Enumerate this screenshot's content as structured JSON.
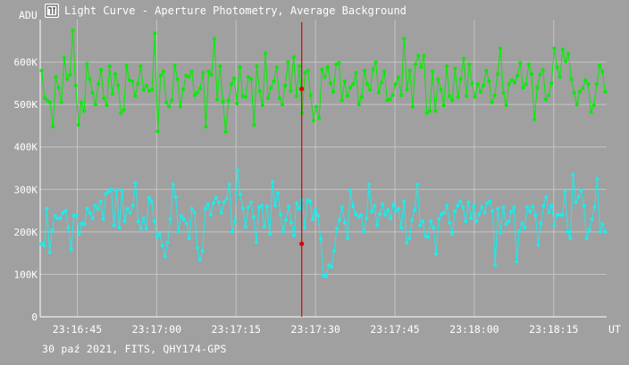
{
  "window": {
    "title": "Light Curve - Aperture Photometry, Average Background",
    "footer": "30 paź 2021, FITS, QHY174-GPS"
  },
  "colors": {
    "background": "#a0a0a0",
    "grid": "#c4c4c4",
    "axis": "#ffffff",
    "series_green": "#00ee00",
    "series_cyan": "#19eded",
    "cursor": "#dd0000"
  },
  "chart_data": {
    "type": "line",
    "title": "Light Curve - Aperture Photometry, Average Background",
    "xlabel": "UT",
    "ylabel": "ADU",
    "xlim": [
      "23:16:38",
      "23:18:25"
    ],
    "ylim": [
      0,
      700000
    ],
    "grid": true,
    "legend": "none",
    "y_ticks": [
      {
        "value": 0,
        "label": "0"
      },
      {
        "value": 100000,
        "label": "100K"
      },
      {
        "value": 200000,
        "label": "200K"
      },
      {
        "value": 300000,
        "label": "300K"
      },
      {
        "value": 400000,
        "label": "400K"
      },
      {
        "value": 500000,
        "label": "500K"
      },
      {
        "value": 600000,
        "label": "600K"
      }
    ],
    "x_ticks": [
      {
        "value": "23:16:45",
        "label": "23:16:45"
      },
      {
        "value": "23:17:00",
        "label": "23:17:00"
      },
      {
        "value": "23:17:15",
        "label": "23:17:15"
      },
      {
        "value": "23:17:30",
        "label": "23:17:30"
      },
      {
        "value": "23:17:45",
        "label": "23:17:45"
      },
      {
        "value": "23:18:00",
        "label": "23:18:00"
      },
      {
        "value": "23:18:15",
        "label": "23:18:15"
      }
    ],
    "cursor": {
      "time": "23:17:27.4",
      "values": [
        537000,
        172000
      ]
    },
    "series": [
      {
        "color": "#00ee00",
        "values": [
          580000,
          515000,
          510000,
          505000,
          448000,
          565000,
          540000,
          505000,
          610000,
          560000,
          570000,
          675000,
          545000,
          452000,
          505000,
          485000,
          596000,
          560000,
          528000,
          500000,
          548000,
          582000,
          515000,
          498000,
          590000,
          525000,
          572000,
          545000,
          480000,
          488000,
          592000,
          558000,
          555000,
          520000,
          548000,
          590000,
          535000,
          545000,
          532000,
          535000,
          668000,
          437000,
          568000,
          578000,
          505000,
          495000,
          510000,
          592000,
          560000,
          495000,
          536000,
          568000,
          565000,
          578000,
          522000,
          528000,
          538000,
          575000,
          448000,
          578000,
          570000,
          655000,
          512000,
          590000,
          507000,
          436000,
          510000,
          548000,
          562000,
          503000,
          588000,
          520000,
          518000,
          565000,
          560000,
          452000,
          590000,
          532000,
          498000,
          620000,
          515000,
          540000,
          555000,
          588000,
          515000,
          500000,
          545000,
          600000,
          532000,
          612000,
          520000,
          590000,
          480000,
          575000,
          580000,
          522000,
          462000,
          495000,
          468000,
          582000,
          565000,
          588000,
          550000,
          530000,
          595000,
          598000,
          510000,
          555000,
          520000,
          540000,
          548000,
          575000,
          500000,
          518000,
          580000,
          548000,
          535000,
          582000,
          600000,
          528000,
          552000,
          578000,
          510000,
          512000,
          522000,
          548000,
          565000,
          522000,
          655000,
          535000,
          580000,
          495000,
          595000,
          615000,
          588000,
          615000,
          480000,
          485000,
          578000,
          485000,
          560000,
          535000,
          498000,
          590000,
          520000,
          510000,
          585000,
          518000,
          560000,
          608000,
          520000,
          595000,
          550000,
          518000,
          548000,
          530000,
          545000,
          580000,
          555000,
          505000,
          522000,
          572000,
          632000,
          528000,
          498000,
          548000,
          558000,
          552000,
          568000,
          598000,
          540000,
          548000,
          595000,
          572000,
          465000,
          540000,
          570000,
          582000,
          512000,
          522000,
          550000,
          632000,
          588000,
          565000,
          630000,
          602000,
          620000,
          560000,
          528000,
          500000,
          530000,
          538000,
          558000,
          548000,
          482000,
          498000,
          548000,
          592000,
          578000,
          530000
        ],
        "name": ""
      },
      {
        "color": "#19eded",
        "values": [
          172000,
          168000,
          255000,
          152000,
          204000,
          238000,
          232000,
          232000,
          245000,
          250000,
          210000,
          158000,
          238000,
          240000,
          195000,
          220000,
          218000,
          255000,
          245000,
          232000,
          262000,
          255000,
          272000,
          230000,
          290000,
          295000,
          300000,
          215000,
          298000,
          210000,
          298000,
          225000,
          255000,
          245000,
          262000,
          315000,
          225000,
          208000,
          232000,
          208000,
          280000,
          272000,
          225000,
          188000,
          195000,
          168000,
          142000,
          175000,
          230000,
          312000,
          282000,
          200000,
          238000,
          230000,
          220000,
          185000,
          255000,
          245000,
          162000,
          135000,
          155000,
          255000,
          265000,
          240000,
          268000,
          280000,
          270000,
          245000,
          270000,
          278000,
          312000,
          200000,
          225000,
          345000,
          288000,
          255000,
          212000,
          258000,
          270000,
          235000,
          175000,
          258000,
          262000,
          212000,
          260000,
          195000,
          318000,
          262000,
          292000,
          240000,
          200000,
          228000,
          260000,
          222000,
          192000,
          268000,
          255000,
          275000,
          210000,
          275000,
          272000,
          230000,
          252000,
          238000,
          182000,
          97000,
          95000,
          122000,
          118000,
          155000,
          208000,
          228000,
          258000,
          222000,
          185000,
          298000,
          260000,
          242000,
          235000,
          240000,
          200000,
          232000,
          312000,
          248000,
          262000,
          215000,
          242000,
          265000,
          240000,
          252000,
          232000,
          265000,
          250000,
          255000,
          210000,
          272000,
          175000,
          185000,
          228000,
          252000,
          312000,
          215000,
          225000,
          190000,
          188000,
          225000,
          210000,
          148000,
          230000,
          242000,
          245000,
          262000,
          222000,
          195000,
          248000,
          262000,
          272000,
          258000,
          225000,
          270000,
          232000,
          262000,
          225000,
          242000,
          258000,
          245000,
          268000,
          272000,
          250000,
          122000,
          255000,
          198000,
          258000,
          218000,
          225000,
          248000,
          258000,
          130000,
          202000,
          220000,
          210000,
          258000,
          248000,
          260000,
          238000,
          170000,
          220000,
          262000,
          282000,
          245000,
          262000,
          215000,
          240000,
          240000,
          240000,
          295000,
          200000,
          185000,
          335000,
          270000,
          282000,
          298000,
          262000,
          185000,
          205000,
          230000,
          258000,
          325000,
          200000,
          218000,
          200000
        ],
        "name": ""
      }
    ]
  }
}
